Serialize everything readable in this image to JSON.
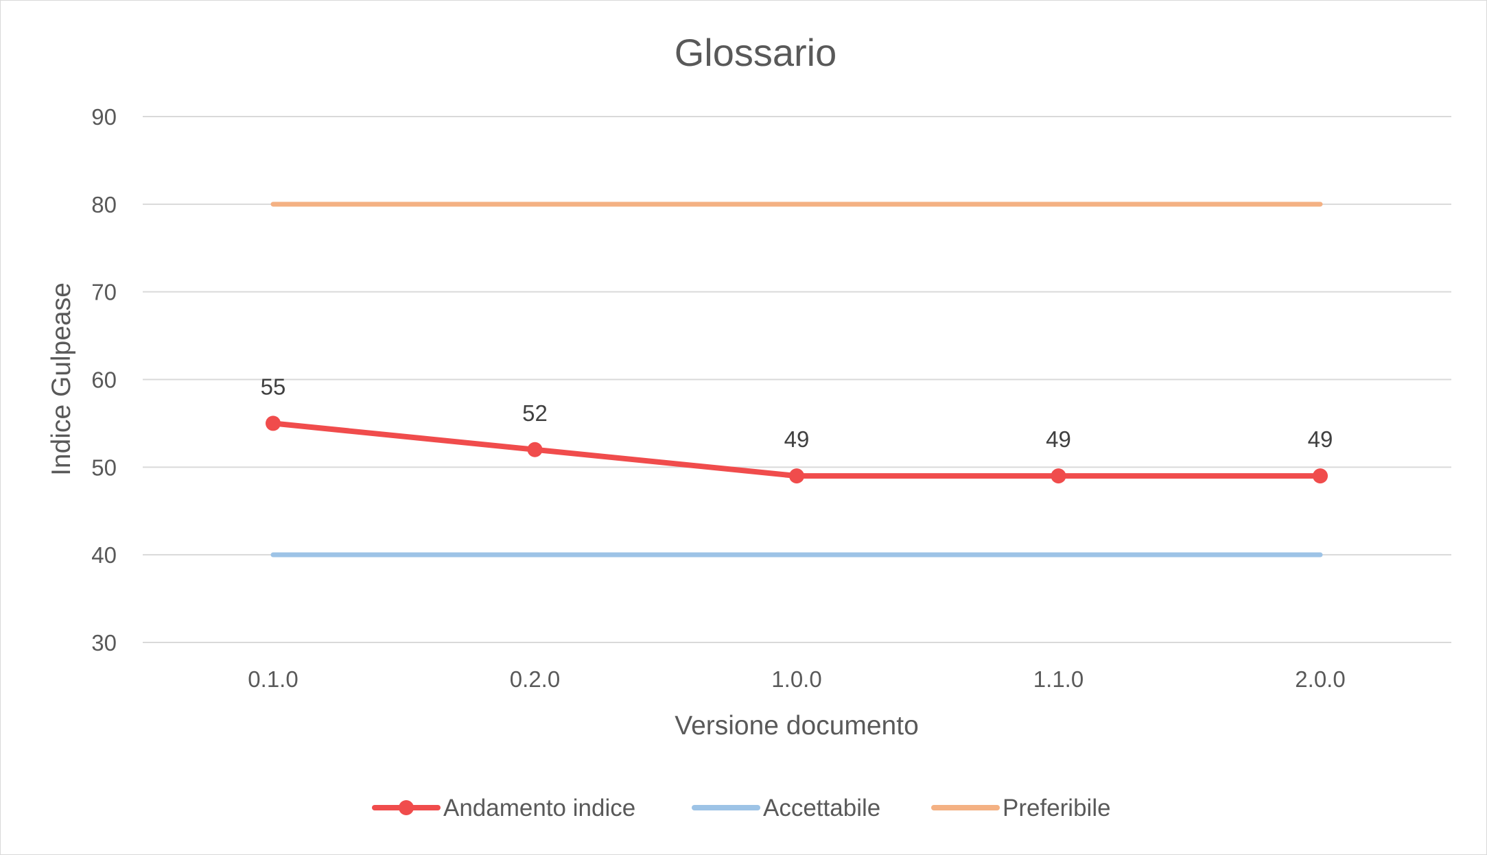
{
  "chart_data": {
    "type": "line",
    "title": "Glossario",
    "xlabel": "Versione documento",
    "ylabel": "Indice Gulpease",
    "categories": [
      "0.1.0",
      "0.2.0",
      "1.0.0",
      "1.1.0",
      "2.0.0"
    ],
    "ylim": [
      30,
      90
    ],
    "yticks": [
      30,
      40,
      50,
      60,
      70,
      80,
      90
    ],
    "grid": true,
    "legend_position": "bottom",
    "series": [
      {
        "name": "Andamento indice",
        "values": [
          55,
          52,
          49,
          49,
          49
        ],
        "color": "#f04c4c",
        "markers": true,
        "data_labels": [
          "55",
          "52",
          "49",
          "49",
          "49"
        ]
      },
      {
        "name": "Accettabile",
        "values": [
          40,
          40,
          40,
          40,
          40
        ],
        "color": "#9dc3e6",
        "markers": false
      },
      {
        "name": "Preferibile",
        "values": [
          80,
          80,
          80,
          80,
          80
        ],
        "color": "#f4b183",
        "markers": false
      }
    ]
  }
}
